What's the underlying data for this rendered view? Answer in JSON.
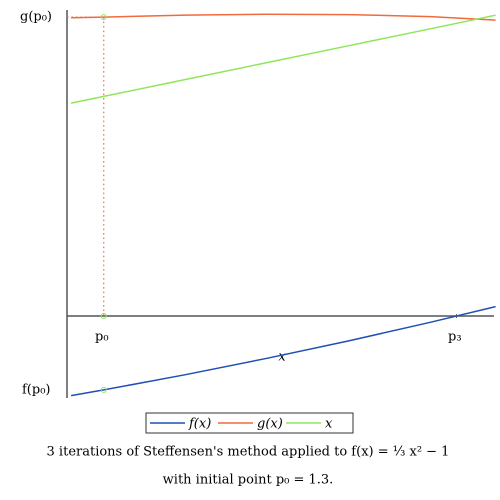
{
  "chart_data": {
    "type": "line",
    "x": [
      1.26,
      1.3,
      1.4,
      1.5,
      1.6,
      1.7,
      1.78
    ],
    "xlim": [
      1.255,
      1.778
    ],
    "ylim": [
      -0.485,
      1.811
    ],
    "x_label": "x",
    "series": [
      {
        "name": "f(x)",
        "color": "#1f4fb4",
        "values": [
          -0.471,
          -0.437,
          -0.347,
          -0.25,
          -0.147,
          -0.037,
          0.056
        ]
      },
      {
        "name": "g(x)",
        "color": "#f06a3c",
        "values": [
          1.765,
          1.769,
          1.781,
          1.786,
          1.784,
          1.772,
          1.751
        ]
      },
      {
        "name": "x",
        "color": "#8fe65a",
        "values": [
          1.26,
          1.3,
          1.4,
          1.5,
          1.6,
          1.7,
          1.78
        ]
      }
    ],
    "points": {
      "x": [
        1.3,
        1.3,
        1.3
      ],
      "y": [
        1.769,
        0,
        -0.437
      ],
      "color": "#8fe65a"
    },
    "labels": {
      "g_p0": "g(p₀)",
      "f_p0": "f(p₀)",
      "p0": "p₀",
      "p3": "p₃"
    },
    "p3": 1.732,
    "caption": [
      "3 iterations of Steffensen's method applied to f(x) = ⅓ x² − 1",
      "with initial point p₀ = 1.3."
    ]
  }
}
